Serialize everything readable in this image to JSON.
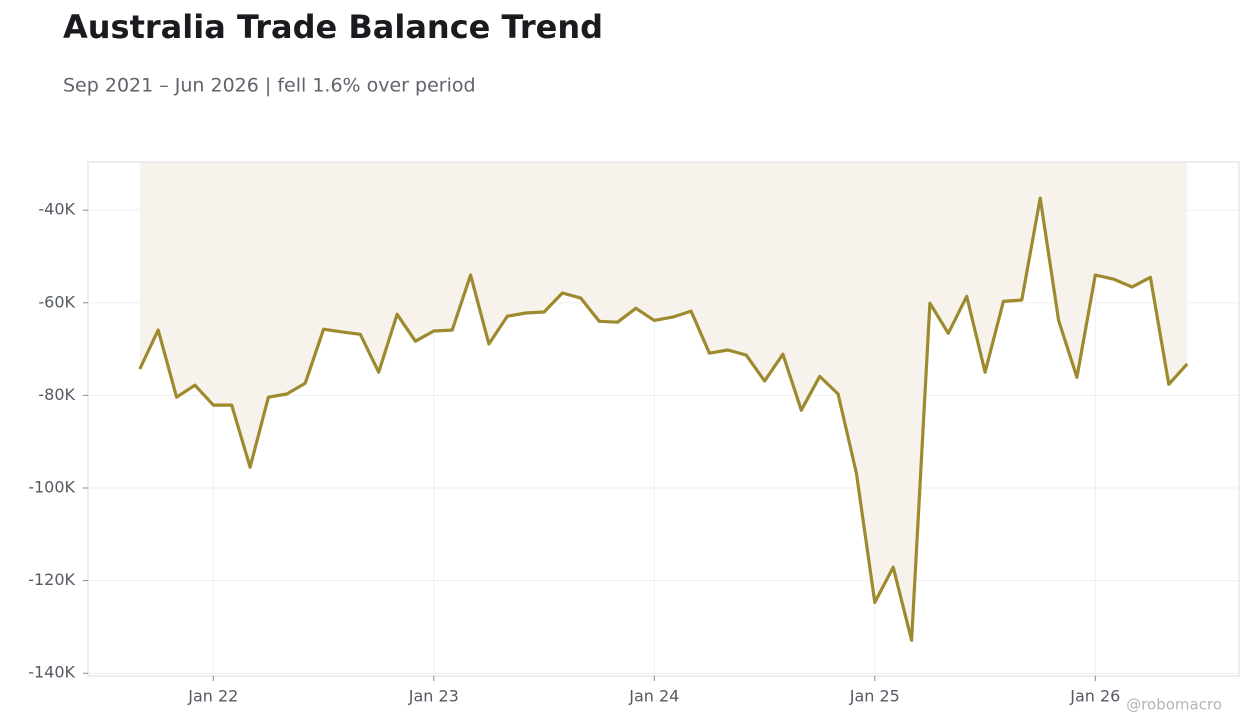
{
  "chart_data": {
    "type": "line",
    "title": "Australia Trade Balance Trend",
    "subtitle": "Sep 2021 – Jun 2026 | fell 1.6% over period",
    "watermark": "@robomacro",
    "x": [
      "2021-09",
      "2021-10",
      "2021-11",
      "2021-12",
      "2022-01",
      "2022-02",
      "2022-03",
      "2022-04",
      "2022-05",
      "2022-06",
      "2022-07",
      "2022-08",
      "2022-09",
      "2022-10",
      "2022-11",
      "2022-12",
      "2023-01",
      "2023-02",
      "2023-03",
      "2023-04",
      "2023-05",
      "2023-06",
      "2023-07",
      "2023-08",
      "2023-09",
      "2023-10",
      "2023-11",
      "2023-12",
      "2024-01",
      "2024-02",
      "2024-03",
      "2024-04",
      "2024-05",
      "2024-06",
      "2024-07",
      "2024-08",
      "2024-09",
      "2024-10",
      "2024-11",
      "2024-12",
      "2025-01",
      "2025-02",
      "2025-03",
      "2025-04",
      "2025-05",
      "2025-06",
      "2025-07",
      "2025-08",
      "2025-09",
      "2025-10",
      "2025-11",
      "2025-12",
      "2026-01",
      "2026-02",
      "2026-03",
      "2026-04",
      "2026-05",
      "2026-06"
    ],
    "series": [
      {
        "name": "Trade balance",
        "color": "#9e8a2e",
        "fill": "#f7f3ec",
        "values": [
          -74.3,
          -65.9,
          -80.4,
          -77.8,
          -82.1,
          -82.1,
          -95.5,
          -80.4,
          -79.7,
          -77.4,
          -65.7,
          -66.3,
          -66.8,
          -75.0,
          -62.5,
          -68.3,
          -66.1,
          -65.9,
          -54.0,
          -68.9,
          -62.9,
          -62.2,
          -62.0,
          -57.9,
          -59.0,
          -64.0,
          -64.2,
          -61.2,
          -63.8,
          -63.1,
          -61.8,
          -70.9,
          -70.2,
          -71.3,
          -76.9,
          -71.1,
          -83.2,
          -75.9,
          -79.7,
          -96.8,
          -124.7,
          -117.1,
          -132.9,
          -60.1,
          -66.6,
          -58.6,
          -75.0,
          -59.7,
          -59.4,
          -37.4,
          -63.8,
          -76.1,
          -54.0,
          -54.9,
          -56.6,
          -54.5,
          -77.6,
          -73.2
        ]
      }
    ],
    "ylim": [
      -140.6,
      -29.6
    ],
    "yticks": [
      {
        "value": -140,
        "label": "-140K"
      },
      {
        "value": -120,
        "label": "-120K"
      },
      {
        "value": -100,
        "label": "-100K"
      },
      {
        "value": -80,
        "label": "-80K"
      },
      {
        "value": -60,
        "label": "-60K"
      },
      {
        "value": -40,
        "label": "-40K"
      }
    ],
    "xticks": [
      {
        "value": "2022-01",
        "label": "Jan 22"
      },
      {
        "value": "2023-01",
        "label": "Jan 23"
      },
      {
        "value": "2024-01",
        "label": "Jan 24"
      },
      {
        "value": "2025-01",
        "label": "Jan 25"
      },
      {
        "value": "2026-01",
        "label": "Jan 26"
      }
    ],
    "grid": true
  }
}
